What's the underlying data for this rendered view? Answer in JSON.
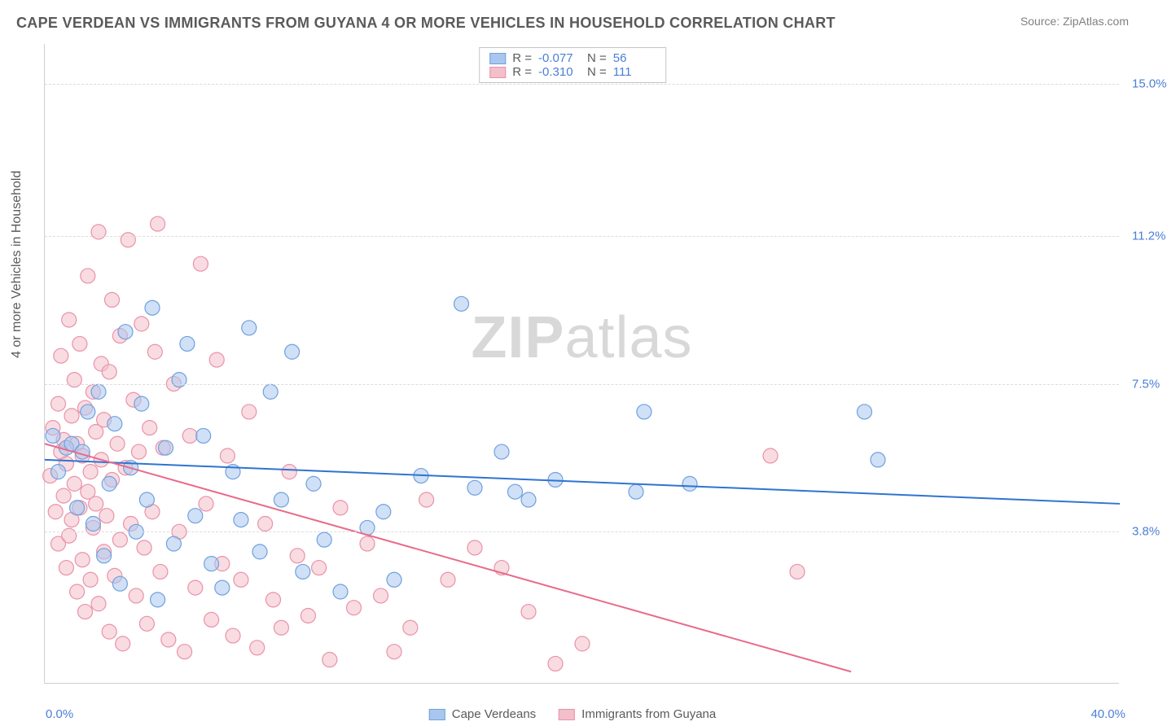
{
  "title": "CAPE VERDEAN VS IMMIGRANTS FROM GUYANA 4 OR MORE VEHICLES IN HOUSEHOLD CORRELATION CHART",
  "source": "Source: ZipAtlas.com",
  "watermark_a": "ZIP",
  "watermark_b": "atlas",
  "chart": {
    "type": "scatter",
    "y_label": "4 or more Vehicles in Household",
    "x_min_label": "0.0%",
    "x_max_label": "40.0%",
    "x_range": [
      0,
      40
    ],
    "y_range": [
      0,
      16
    ],
    "y_ticks": [
      {
        "v": 3.8,
        "label": "3.8%"
      },
      {
        "v": 7.5,
        "label": "7.5%"
      },
      {
        "v": 11.2,
        "label": "11.2%"
      },
      {
        "v": 15.0,
        "label": "15.0%"
      }
    ],
    "grid_color": "#dcdcdc",
    "axis_color": "#cfcfcf",
    "background_color": "#ffffff",
    "tick_label_color": "#4a7fd6",
    "marker_radius": 9,
    "marker_opacity": 0.55,
    "line_width": 2,
    "series": [
      {
        "name": "Cape Verdeans",
        "color_fill": "#a9c7ee",
        "color_stroke": "#6fa1dd",
        "line_color": "#2f74d0",
        "R": "-0.077",
        "N": "56",
        "trend": {
          "x1": 0,
          "y1": 5.6,
          "x2": 40,
          "y2": 4.5
        },
        "points": [
          [
            0.3,
            6.2
          ],
          [
            0.5,
            5.3
          ],
          [
            0.8,
            5.9
          ],
          [
            1.0,
            6.0
          ],
          [
            1.2,
            4.4
          ],
          [
            1.4,
            5.8
          ],
          [
            1.6,
            6.8
          ],
          [
            1.8,
            4.0
          ],
          [
            2.0,
            7.3
          ],
          [
            2.2,
            3.2
          ],
          [
            2.4,
            5.0
          ],
          [
            2.6,
            6.5
          ],
          [
            2.8,
            2.5
          ],
          [
            3.0,
            8.8
          ],
          [
            3.2,
            5.4
          ],
          [
            3.4,
            3.8
          ],
          [
            3.6,
            7.0
          ],
          [
            3.8,
            4.6
          ],
          [
            4.0,
            9.4
          ],
          [
            4.2,
            2.1
          ],
          [
            4.5,
            5.9
          ],
          [
            4.8,
            3.5
          ],
          [
            5.0,
            7.6
          ],
          [
            5.3,
            8.5
          ],
          [
            5.6,
            4.2
          ],
          [
            5.9,
            6.2
          ],
          [
            6.2,
            3.0
          ],
          [
            6.6,
            2.4
          ],
          [
            7.0,
            5.3
          ],
          [
            7.3,
            4.1
          ],
          [
            7.6,
            8.9
          ],
          [
            8.0,
            3.3
          ],
          [
            8.4,
            7.3
          ],
          [
            8.8,
            4.6
          ],
          [
            9.2,
            8.3
          ],
          [
            9.6,
            2.8
          ],
          [
            10.0,
            5.0
          ],
          [
            10.4,
            3.6
          ],
          [
            11.0,
            2.3
          ],
          [
            12.0,
            3.9
          ],
          [
            12.6,
            4.3
          ],
          [
            13.0,
            2.6
          ],
          [
            14.0,
            5.2
          ],
          [
            15.5,
            9.5
          ],
          [
            16.0,
            4.9
          ],
          [
            17.0,
            5.8
          ],
          [
            17.5,
            4.8
          ],
          [
            18.0,
            4.6
          ],
          [
            19.0,
            5.1
          ],
          [
            22.0,
            4.8
          ],
          [
            22.3,
            6.8
          ],
          [
            24.0,
            5.0
          ],
          [
            30.5,
            6.8
          ],
          [
            31.0,
            5.6
          ]
        ]
      },
      {
        "name": "Immigrants from Guyana",
        "color_fill": "#f3bfcb",
        "color_stroke": "#ea92a9",
        "line_color": "#e86b8a",
        "R": "-0.310",
        "N": "111",
        "trend": {
          "x1": 0,
          "y1": 6.0,
          "x2": 30,
          "y2": 0.3
        },
        "points": [
          [
            0.2,
            5.2
          ],
          [
            0.3,
            6.4
          ],
          [
            0.4,
            4.3
          ],
          [
            0.5,
            7.0
          ],
          [
            0.5,
            3.5
          ],
          [
            0.6,
            5.8
          ],
          [
            0.6,
            8.2
          ],
          [
            0.7,
            4.7
          ],
          [
            0.7,
            6.1
          ],
          [
            0.8,
            2.9
          ],
          [
            0.8,
            5.5
          ],
          [
            0.9,
            9.1
          ],
          [
            0.9,
            3.7
          ],
          [
            1.0,
            6.7
          ],
          [
            1.0,
            4.1
          ],
          [
            1.1,
            5.0
          ],
          [
            1.1,
            7.6
          ],
          [
            1.2,
            2.3
          ],
          [
            1.2,
            6.0
          ],
          [
            1.3,
            4.4
          ],
          [
            1.3,
            8.5
          ],
          [
            1.4,
            3.1
          ],
          [
            1.4,
            5.7
          ],
          [
            1.5,
            6.9
          ],
          [
            1.5,
            1.8
          ],
          [
            1.6,
            4.8
          ],
          [
            1.6,
            10.2
          ],
          [
            1.7,
            5.3
          ],
          [
            1.7,
            2.6
          ],
          [
            1.8,
            7.3
          ],
          [
            1.8,
            3.9
          ],
          [
            1.9,
            6.3
          ],
          [
            1.9,
            4.5
          ],
          [
            2.0,
            11.3
          ],
          [
            2.0,
            2.0
          ],
          [
            2.1,
            5.6
          ],
          [
            2.1,
            8.0
          ],
          [
            2.2,
            3.3
          ],
          [
            2.2,
            6.6
          ],
          [
            2.3,
            4.2
          ],
          [
            2.4,
            1.3
          ],
          [
            2.4,
            7.8
          ],
          [
            2.5,
            5.1
          ],
          [
            2.5,
            9.6
          ],
          [
            2.6,
            2.7
          ],
          [
            2.7,
            6.0
          ],
          [
            2.8,
            3.6
          ],
          [
            2.8,
            8.7
          ],
          [
            2.9,
            1.0
          ],
          [
            3.0,
            5.4
          ],
          [
            3.1,
            11.1
          ],
          [
            3.2,
            4.0
          ],
          [
            3.3,
            7.1
          ],
          [
            3.4,
            2.2
          ],
          [
            3.5,
            5.8
          ],
          [
            3.6,
            9.0
          ],
          [
            3.7,
            3.4
          ],
          [
            3.8,
            1.5
          ],
          [
            3.9,
            6.4
          ],
          [
            4.0,
            4.3
          ],
          [
            4.1,
            8.3
          ],
          [
            4.2,
            11.5
          ],
          [
            4.3,
            2.8
          ],
          [
            4.4,
            5.9
          ],
          [
            4.6,
            1.1
          ],
          [
            4.8,
            7.5
          ],
          [
            5.0,
            3.8
          ],
          [
            5.2,
            0.8
          ],
          [
            5.4,
            6.2
          ],
          [
            5.6,
            2.4
          ],
          [
            5.8,
            10.5
          ],
          [
            6.0,
            4.5
          ],
          [
            6.2,
            1.6
          ],
          [
            6.4,
            8.1
          ],
          [
            6.6,
            3.0
          ],
          [
            6.8,
            5.7
          ],
          [
            7.0,
            1.2
          ],
          [
            7.3,
            2.6
          ],
          [
            7.6,
            6.8
          ],
          [
            7.9,
            0.9
          ],
          [
            8.2,
            4.0
          ],
          [
            8.5,
            2.1
          ],
          [
            8.8,
            1.4
          ],
          [
            9.1,
            5.3
          ],
          [
            9.4,
            3.2
          ],
          [
            9.8,
            1.7
          ],
          [
            10.2,
            2.9
          ],
          [
            10.6,
            0.6
          ],
          [
            11.0,
            4.4
          ],
          [
            11.5,
            1.9
          ],
          [
            12.0,
            3.5
          ],
          [
            12.5,
            2.2
          ],
          [
            13.0,
            0.8
          ],
          [
            13.6,
            1.4
          ],
          [
            14.2,
            4.6
          ],
          [
            15.0,
            2.6
          ],
          [
            16.0,
            3.4
          ],
          [
            17.0,
            2.9
          ],
          [
            18.0,
            1.8
          ],
          [
            19.0,
            0.5
          ],
          [
            20.0,
            1.0
          ],
          [
            27.0,
            5.7
          ],
          [
            28.0,
            2.8
          ]
        ]
      }
    ]
  },
  "legend_top": {
    "r_label": "R =",
    "n_label": "N ="
  }
}
